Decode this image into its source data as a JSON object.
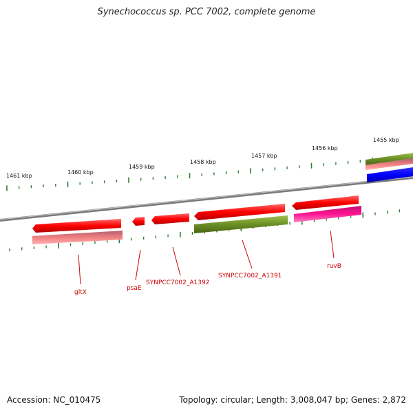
{
  "title": "Synechococcus sp. PCC 7002, complete genome",
  "footer": {
    "accession": "Accession: NC_010475",
    "summary": "Topology: circular; Length: 3,008,047 bp; Genes: 2,872"
  },
  "ruler": {
    "labels": [
      "1461 kbp",
      "1460 kbp",
      "1459 kbp",
      "1458 kbp",
      "1457 kbp",
      "1456 kbp",
      "1455 kbp"
    ]
  },
  "genes": [
    {
      "name": "gltX",
      "strand": "reverse"
    },
    {
      "name": "psaE",
      "strand": "reverse"
    },
    {
      "name": "SYNPCC7002_A1392",
      "strand": "reverse"
    },
    {
      "name": "SYNPCC7002_A1391",
      "strand": "reverse"
    },
    {
      "name": "ruvB",
      "strand": "reverse"
    }
  ],
  "colors": {
    "cds_red": "#ff0000",
    "cds_pink": "#f08080",
    "cds_olive": "#6b8e23",
    "cds_magenta": "#ff1493",
    "cds_blue": "#0000ff",
    "backbone": "#808080",
    "tick_green": "#2e7d32",
    "label_red": "#cc0000"
  }
}
